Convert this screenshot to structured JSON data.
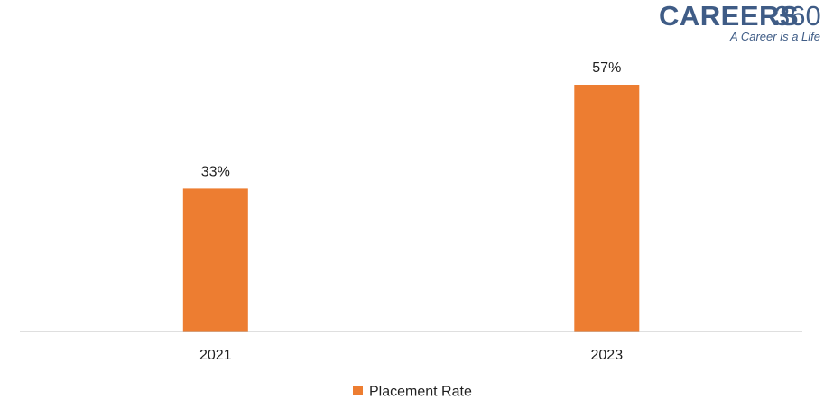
{
  "brand": {
    "name_main": "CAREERS",
    "name_num": "360",
    "tagline": "A Career is a Life",
    "color": "#3f5c86"
  },
  "chart_data": {
    "type": "bar",
    "categories": [
      "2021",
      "2023"
    ],
    "series": [
      {
        "name": "Placement Rate",
        "values": [
          33,
          57
        ],
        "labels": [
          "33%",
          "57%"
        ],
        "color": "#ed7d31"
      }
    ],
    "ylim": [
      0,
      60
    ],
    "grid": false,
    "legend": "bottom",
    "axis_color": "#bfbfbf"
  }
}
